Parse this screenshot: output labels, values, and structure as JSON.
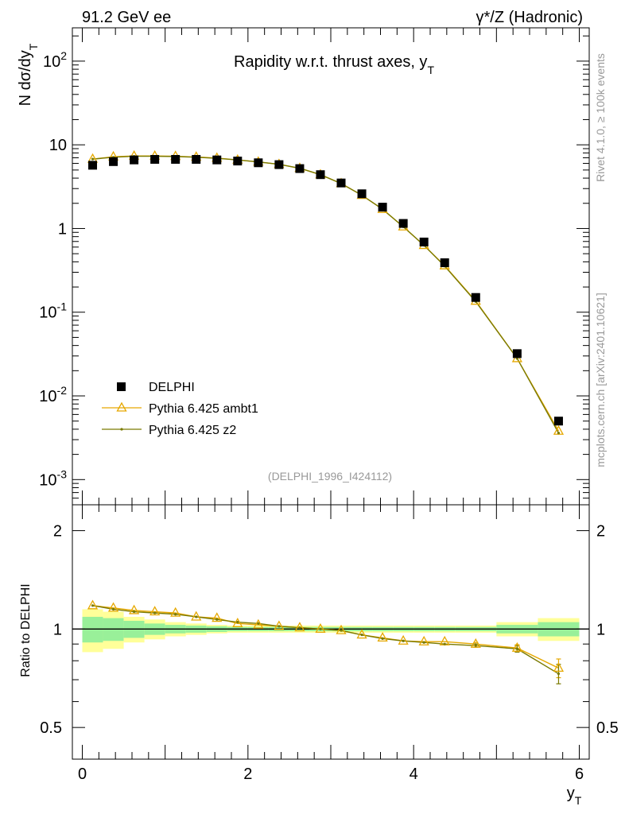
{
  "header": {
    "left": "91.2 GeV ee",
    "right": "γ*/Z (Hadronic)"
  },
  "side_text": {
    "rivet": "Rivet 4.1.0, ≥ 100k events",
    "mcplots": "mcplots.cern.ch [arXiv:2401.10621]"
  },
  "colors": {
    "data": "#000000",
    "ambt1": "#e6a800",
    "z2": "#7a7a00",
    "band_green": "#99f099",
    "band_yellow": "#ffff99",
    "ref_gray": "#999999"
  },
  "chart_data": [
    {
      "type": "scatter",
      "title": "Rapidity w.r.t. thrust axes, y",
      "title_sub": "T",
      "ylabel": "N  dσ/dy",
      "ylabel_sub": "T",
      "xlim": [
        -0.12,
        6.12
      ],
      "ylim": [
        0.0005,
        250
      ],
      "yscale": "log",
      "ytick_labels": [
        {
          "base": "10",
          "exp": "-3",
          "value": 0.001
        },
        {
          "base": "10",
          "exp": "-2",
          "value": 0.01
        },
        {
          "base": "10",
          "exp": "-1",
          "value": 0.1
        },
        {
          "base": "1",
          "exp": "",
          "value": 1
        },
        {
          "base": "10",
          "exp": "",
          "value": 10
        },
        {
          "base": "10",
          "exp": "2",
          "value": 100
        }
      ],
      "reference": "(DELPHI_1996_I424112)",
      "x": [
        0.125,
        0.375,
        0.625,
        0.875,
        1.125,
        1.375,
        1.625,
        1.875,
        2.125,
        2.375,
        2.625,
        2.875,
        3.125,
        3.375,
        3.625,
        3.875,
        4.125,
        4.375,
        4.75,
        5.25,
        5.75
      ],
      "series": [
        {
          "name": "DELPHI",
          "marker": "square",
          "values": [
            5.7,
            6.3,
            6.6,
            6.7,
            6.7,
            6.7,
            6.6,
            6.4,
            6.1,
            5.8,
            5.2,
            4.4,
            3.5,
            2.6,
            1.8,
            1.15,
            0.69,
            0.39,
            0.15,
            0.032,
            0.005
          ]
        },
        {
          "name": "Pythia 6.425 ambt1",
          "marker": "triangle",
          "values": [
            6.75,
            7.2,
            7.35,
            7.35,
            7.3,
            7.15,
            6.95,
            6.6,
            6.25,
            5.85,
            5.25,
            4.4,
            3.45,
            2.5,
            1.7,
            1.05,
            0.63,
            0.36,
            0.136,
            0.028,
            0.0038
          ]
        },
        {
          "name": "Pythia 6.425 z2",
          "marker": "dot",
          "values": [
            6.75,
            7.1,
            7.3,
            7.3,
            7.25,
            7.1,
            6.9,
            6.6,
            6.25,
            5.85,
            5.25,
            4.4,
            3.45,
            2.5,
            1.7,
            1.05,
            0.63,
            0.355,
            0.134,
            0.028,
            0.0036
          ]
        }
      ]
    },
    {
      "type": "line",
      "ylabel": "Ratio to DELPHI",
      "xlabel": "y",
      "xlabel_sub": "T",
      "xlim": [
        -0.12,
        6.12
      ],
      "ylim": [
        0.4,
        2.4
      ],
      "yscale": "log",
      "ytick_labels": [
        {
          "label": "0.5",
          "value": 0.5
        },
        {
          "label": "1",
          "value": 1
        },
        {
          "label": "2",
          "value": 2
        }
      ],
      "xtick_labels": [
        {
          "label": "0",
          "value": 0
        },
        {
          "label": "2",
          "value": 2
        },
        {
          "label": "4",
          "value": 4
        },
        {
          "label": "6",
          "value": 6
        }
      ],
      "bins": [
        0,
        0.25,
        0.5,
        0.75,
        1.0,
        1.25,
        1.5,
        1.75,
        2.0,
        2.25,
        2.5,
        2.75,
        3.0,
        3.25,
        3.5,
        3.75,
        4.0,
        4.25,
        4.5,
        5.0,
        5.5,
        6.0
      ],
      "band_green": [
        [
          0.91,
          1.09
        ],
        [
          0.92,
          1.08
        ],
        [
          0.94,
          1.06
        ],
        [
          0.96,
          1.04
        ],
        [
          0.97,
          1.03
        ],
        [
          0.975,
          1.025
        ],
        [
          0.98,
          1.02
        ],
        [
          0.985,
          1.015
        ],
        [
          0.985,
          1.015
        ],
        [
          0.985,
          1.015
        ],
        [
          0.985,
          1.015
        ],
        [
          0.985,
          1.015
        ],
        [
          0.985,
          1.015
        ],
        [
          0.985,
          1.015
        ],
        [
          0.985,
          1.015
        ],
        [
          0.985,
          1.015
        ],
        [
          0.985,
          1.015
        ],
        [
          0.985,
          1.015
        ],
        [
          0.985,
          1.015
        ],
        [
          0.97,
          1.03
        ],
        [
          0.95,
          1.05
        ]
      ],
      "band_yellow": [
        [
          0.85,
          1.15
        ],
        [
          0.87,
          1.13
        ],
        [
          0.91,
          1.09
        ],
        [
          0.93,
          1.07
        ],
        [
          0.95,
          1.05
        ],
        [
          0.96,
          1.04
        ],
        [
          0.97,
          1.03
        ],
        [
          0.975,
          1.025
        ],
        [
          0.975,
          1.025
        ],
        [
          0.975,
          1.025
        ],
        [
          0.975,
          1.025
        ],
        [
          0.975,
          1.025
        ],
        [
          0.975,
          1.025
        ],
        [
          0.975,
          1.025
        ],
        [
          0.975,
          1.025
        ],
        [
          0.975,
          1.025
        ],
        [
          0.975,
          1.025
        ],
        [
          0.975,
          1.025
        ],
        [
          0.975,
          1.025
        ],
        [
          0.95,
          1.05
        ],
        [
          0.92,
          1.08
        ]
      ],
      "x": [
        0.125,
        0.375,
        0.625,
        0.875,
        1.125,
        1.375,
        1.625,
        1.875,
        2.125,
        2.375,
        2.625,
        2.875,
        3.125,
        3.375,
        3.625,
        3.875,
        4.125,
        4.375,
        4.75,
        5.25,
        5.75
      ],
      "series": [
        {
          "name": "Pythia 6.425 ambt1",
          "marker": "triangle",
          "values": [
            1.18,
            1.16,
            1.14,
            1.13,
            1.12,
            1.09,
            1.08,
            1.04,
            1.03,
            1.02,
            1.01,
            1.0,
            0.99,
            0.96,
            0.94,
            0.92,
            0.915,
            0.915,
            0.9,
            0.875,
            0.76
          ],
          "errors": [
            0,
            0,
            0,
            0,
            0,
            0,
            0,
            0,
            0,
            0,
            0,
            0,
            0,
            0,
            0,
            0,
            0,
            0,
            0.01,
            0.02,
            0.05
          ]
        },
        {
          "name": "Pythia 6.425 z2",
          "marker": "dot",
          "values": [
            1.18,
            1.15,
            1.13,
            1.12,
            1.11,
            1.09,
            1.07,
            1.05,
            1.04,
            1.02,
            1.01,
            1.0,
            0.99,
            0.96,
            0.935,
            0.92,
            0.91,
            0.9,
            0.89,
            0.87,
            0.73
          ],
          "errors": [
            0,
            0,
            0,
            0,
            0,
            0,
            0,
            0,
            0,
            0,
            0,
            0,
            0,
            0,
            0,
            0,
            0,
            0,
            0.01,
            0.02,
            0.05
          ]
        }
      ]
    }
  ]
}
